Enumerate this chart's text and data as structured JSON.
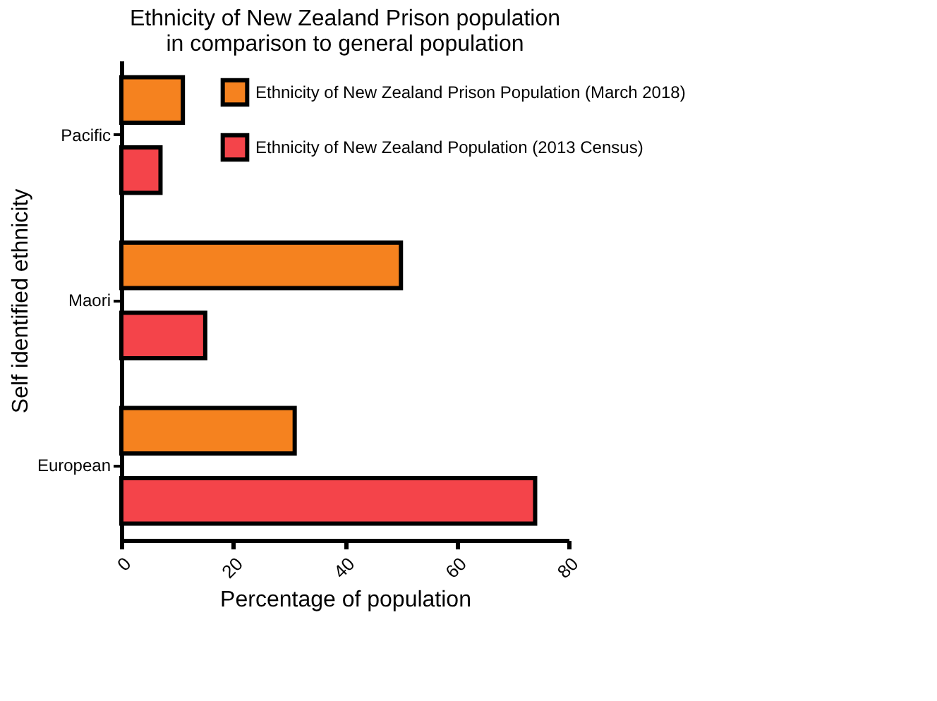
{
  "chart_data": {
    "type": "bar",
    "orientation": "horizontal",
    "title": "Ethnicity of New Zealand Prison population\nin comparison to general population",
    "xlabel": "Percentage of population",
    "ylabel": "Self identified ethnicity",
    "categories": [
      "Pacific",
      "Maori",
      "European"
    ],
    "series": [
      {
        "name": "Ethnicity of New Zealand Prison Population (March 2018)",
        "color": "#f5821f",
        "values": [
          11,
          50,
          31
        ]
      },
      {
        "name": "Ethnicity of New Zealand Population (2013 Census)",
        "color": "#f4444a",
        "values": [
          7,
          15,
          74
        ]
      }
    ],
    "xlim": [
      0,
      80
    ],
    "xticks": [
      0,
      20,
      40,
      60,
      80
    ],
    "grid": false,
    "legend": "top right"
  }
}
